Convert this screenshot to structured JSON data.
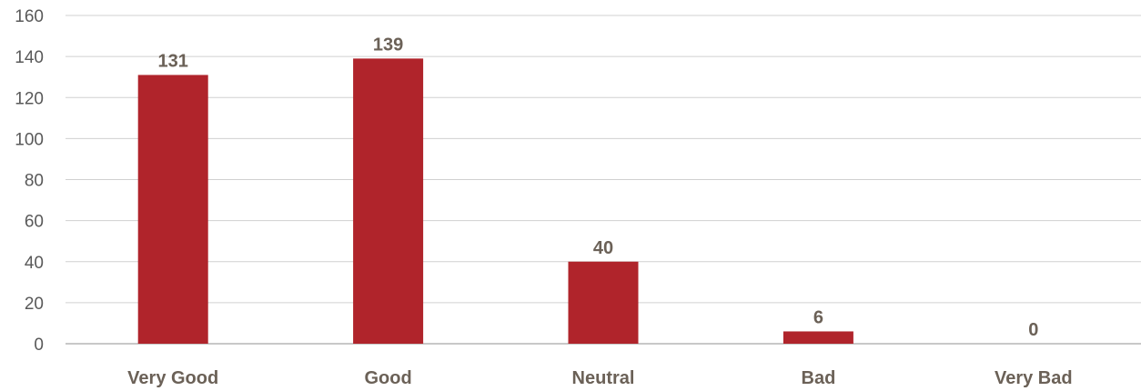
{
  "chart_data": {
    "type": "bar",
    "categories": [
      "Very Good",
      "Good",
      "Neutral",
      "Bad",
      "Very Bad"
    ],
    "values": [
      131,
      139,
      40,
      6,
      0
    ],
    "ylim": [
      0,
      160
    ],
    "yticks": [
      0,
      20,
      40,
      60,
      80,
      100,
      120,
      140,
      160
    ],
    "grid": true,
    "legend": "none",
    "colors": {
      "bar": "#b0242b",
      "label": "#6b6157",
      "tick": "#595959",
      "grid": "#d0d0d0"
    }
  }
}
